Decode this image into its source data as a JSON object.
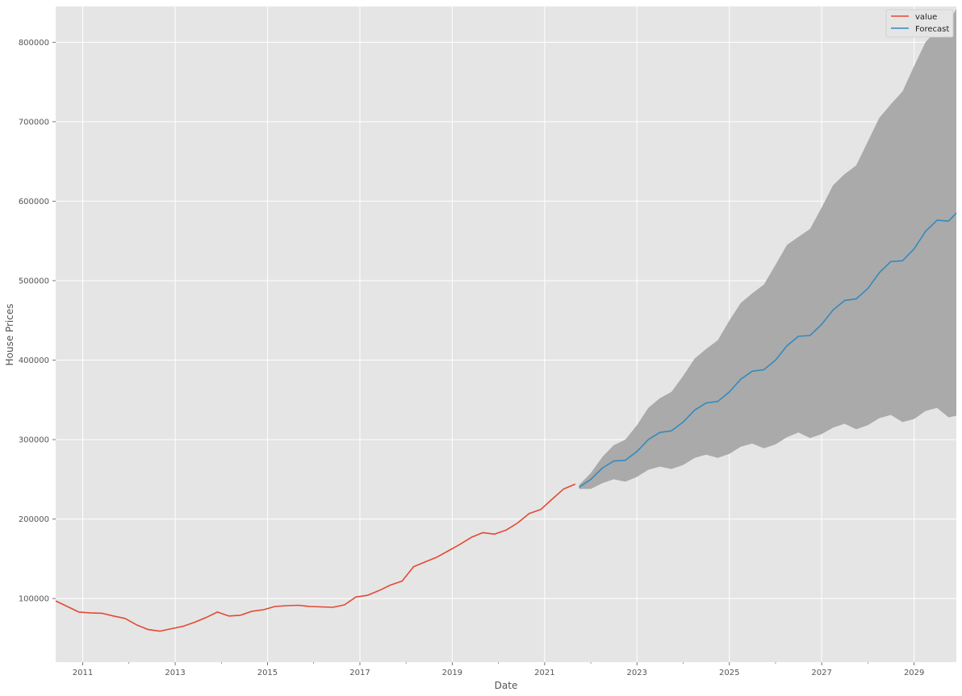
{
  "chart_data": {
    "type": "line",
    "title": "",
    "xlabel": "Date",
    "ylabel": "House Prices",
    "xlim": [
      "2010-06-01",
      "2029-12-01"
    ],
    "ylim": [
      20000,
      845000
    ],
    "x_ticks": [
      "2011",
      "2013",
      "2015",
      "2017",
      "2019",
      "2021",
      "2023",
      "2025",
      "2027",
      "2029"
    ],
    "y_ticks": [
      100000,
      200000,
      300000,
      400000,
      500000,
      600000,
      700000,
      800000
    ],
    "y_tick_labels": [
      "100000",
      "200000",
      "300000",
      "400000",
      "500000",
      "600000",
      "700000",
      "800000"
    ],
    "grid": true,
    "legend_position": "top-right",
    "background": "#E5E5E5",
    "series": [
      {
        "name": "value",
        "color": "#E24A33",
        "points": [
          [
            "2010-06-01",
            97000
          ],
          [
            "2010-09-01",
            90000
          ],
          [
            "2010-12-01",
            83000
          ],
          [
            "2011-03-01",
            82000
          ],
          [
            "2011-06-01",
            81500
          ],
          [
            "2011-09-01",
            78000
          ],
          [
            "2011-12-01",
            75000
          ],
          [
            "2012-03-01",
            67000
          ],
          [
            "2012-06-01",
            61000
          ],
          [
            "2012-09-01",
            59000
          ],
          [
            "2012-12-01",
            62000
          ],
          [
            "2013-03-01",
            65000
          ],
          [
            "2013-06-01",
            70000
          ],
          [
            "2013-09-01",
            76000
          ],
          [
            "2013-12-01",
            83000
          ],
          [
            "2014-03-01",
            78000
          ],
          [
            "2014-06-01",
            79000
          ],
          [
            "2014-09-01",
            84000
          ],
          [
            "2014-12-01",
            86000
          ],
          [
            "2015-03-01",
            90000
          ],
          [
            "2015-06-01",
            91000
          ],
          [
            "2015-09-01",
            91500
          ],
          [
            "2015-12-01",
            90000
          ],
          [
            "2016-03-01",
            89500
          ],
          [
            "2016-06-01",
            89000
          ],
          [
            "2016-09-01",
            92000
          ],
          [
            "2016-12-01",
            102000
          ],
          [
            "2017-03-01",
            104000
          ],
          [
            "2017-06-01",
            110000
          ],
          [
            "2017-09-01",
            117000
          ],
          [
            "2017-12-01",
            122000
          ],
          [
            "2018-03-01",
            140000
          ],
          [
            "2018-06-01",
            146000
          ],
          [
            "2018-09-01",
            152000
          ],
          [
            "2018-12-01",
            160000
          ],
          [
            "2019-03-01",
            168000
          ],
          [
            "2019-06-01",
            177000
          ],
          [
            "2019-09-01",
            183000
          ],
          [
            "2019-12-01",
            181000
          ],
          [
            "2020-03-01",
            186000
          ],
          [
            "2020-06-01",
            195000
          ],
          [
            "2020-09-01",
            207000
          ],
          [
            "2020-12-01",
            212000
          ],
          [
            "2021-03-01",
            225000
          ],
          [
            "2021-06-01",
            238000
          ],
          [
            "2021-09-01",
            244000
          ]
        ]
      },
      {
        "name": "Forecast",
        "color": "#348ABD",
        "points": [
          [
            "2021-10-01",
            240000
          ],
          [
            "2022-01-01",
            250000
          ],
          [
            "2022-04-01",
            264000
          ],
          [
            "2022-07-01",
            273000
          ],
          [
            "2022-10-01",
            274000
          ],
          [
            "2023-01-01",
            285000
          ],
          [
            "2023-04-01",
            300000
          ],
          [
            "2023-07-01",
            309000
          ],
          [
            "2023-10-01",
            311000
          ],
          [
            "2024-01-01",
            322000
          ],
          [
            "2024-04-01",
            337000
          ],
          [
            "2024-07-01",
            346000
          ],
          [
            "2024-10-01",
            348000
          ],
          [
            "2025-01-01",
            360000
          ],
          [
            "2025-04-01",
            376000
          ],
          [
            "2025-07-01",
            386000
          ],
          [
            "2025-10-01",
            388000
          ],
          [
            "2026-01-01",
            400000
          ],
          [
            "2026-04-01",
            418000
          ],
          [
            "2026-07-01",
            430000
          ],
          [
            "2026-10-01",
            431000
          ],
          [
            "2027-01-01",
            445000
          ],
          [
            "2027-04-01",
            463000
          ],
          [
            "2027-07-01",
            475000
          ],
          [
            "2027-10-01",
            477000
          ],
          [
            "2028-01-01",
            490000
          ],
          [
            "2028-04-01",
            510000
          ],
          [
            "2028-07-01",
            524000
          ],
          [
            "2028-10-01",
            525000
          ],
          [
            "2029-01-01",
            540000
          ],
          [
            "2029-04-01",
            562000
          ],
          [
            "2029-07-01",
            576000
          ],
          [
            "2029-10-01",
            575000
          ],
          [
            "2029-12-01",
            585000
          ]
        ]
      }
    ],
    "confidence_band": {
      "color": "#AAAAAA",
      "points": [
        [
          "2021-10-01",
          238000,
          243000
        ],
        [
          "2022-01-01",
          238000,
          258000
        ],
        [
          "2022-04-01",
          245000,
          278000
        ],
        [
          "2022-07-01",
          250000,
          293000
        ],
        [
          "2022-10-01",
          247000,
          300000
        ],
        [
          "2023-01-01",
          253000,
          318000
        ],
        [
          "2023-04-01",
          262000,
          340000
        ],
        [
          "2023-07-01",
          266000,
          352000
        ],
        [
          "2023-10-01",
          263000,
          360000
        ],
        [
          "2024-01-01",
          268000,
          380000
        ],
        [
          "2024-04-01",
          277000,
          402000
        ],
        [
          "2024-07-01",
          281000,
          414000
        ],
        [
          "2024-10-01",
          277000,
          425000
        ],
        [
          "2025-01-01",
          282000,
          450000
        ],
        [
          "2025-04-01",
          291000,
          472000
        ],
        [
          "2025-07-01",
          295000,
          484000
        ],
        [
          "2025-10-01",
          289000,
          495000
        ],
        [
          "2026-01-01",
          294000,
          520000
        ],
        [
          "2026-04-01",
          303000,
          545000
        ],
        [
          "2026-07-01",
          309000,
          555000
        ],
        [
          "2026-10-01",
          302000,
          565000
        ],
        [
          "2027-01-01",
          307000,
          592000
        ],
        [
          "2027-04-01",
          315000,
          620000
        ],
        [
          "2027-07-01",
          320000,
          634000
        ],
        [
          "2027-10-01",
          313000,
          645000
        ],
        [
          "2028-01-01",
          318000,
          675000
        ],
        [
          "2028-04-01",
          327000,
          705000
        ],
        [
          "2028-07-01",
          331000,
          722000
        ],
        [
          "2028-10-01",
          322000,
          738000
        ],
        [
          "2029-01-01",
          326000,
          770000
        ],
        [
          "2029-04-01",
          336000,
          800000
        ],
        [
          "2029-07-01",
          340000,
          816000
        ],
        [
          "2029-10-01",
          328000,
          825000
        ],
        [
          "2029-12-01",
          330000,
          842000
        ]
      ]
    }
  }
}
